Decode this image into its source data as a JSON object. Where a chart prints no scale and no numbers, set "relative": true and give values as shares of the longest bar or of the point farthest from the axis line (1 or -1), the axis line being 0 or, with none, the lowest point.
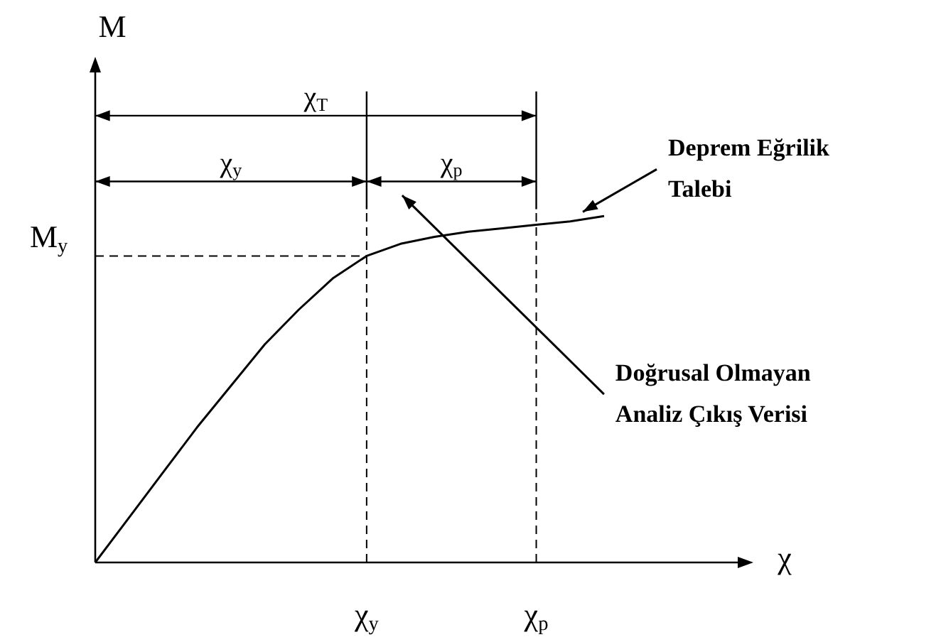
{
  "chart_data": {
    "type": "line",
    "relative": true,
    "categories": [
      null,
      null,
      null,
      null,
      null,
      null,
      null,
      null,
      "χ$_{y}$",
      null,
      null,
      null,
      null,
      "χ$_{p}$",
      null,
      null
    ],
    "values": [
      0,
      0.13,
      0.26,
      0.39,
      0.51,
      0.63,
      0.73,
      0.82,
      0.885,
      0.92,
      0.94,
      0.955,
      0.965,
      0.975,
      0.985,
      1
    ],
    "color": "#000000",
    "marker": "none",
    "line_style": "solid",
    "ref_lines": [
      {
        "axis": "y",
        "value": 0.885,
        "label": "M$_{y}$",
        "line_style": "dashed"
      },
      {
        "axis": "x",
        "value": "χ$_{y}$",
        "line_style": "dashed"
      },
      {
        "axis": "x",
        "value": "χ$_{p}$",
        "line_style": "dashed"
      }
    ],
    "annotations": [
      "χ$_{T}$",
      "χ$_{y}$",
      "χ$_{p}$",
      "Deprem Eğrilik Talebi",
      "Doğrusal Olmayan Analiz Çıkış Verisi",
      "M",
      "χ"
    ],
    "legend": false
  }
}
